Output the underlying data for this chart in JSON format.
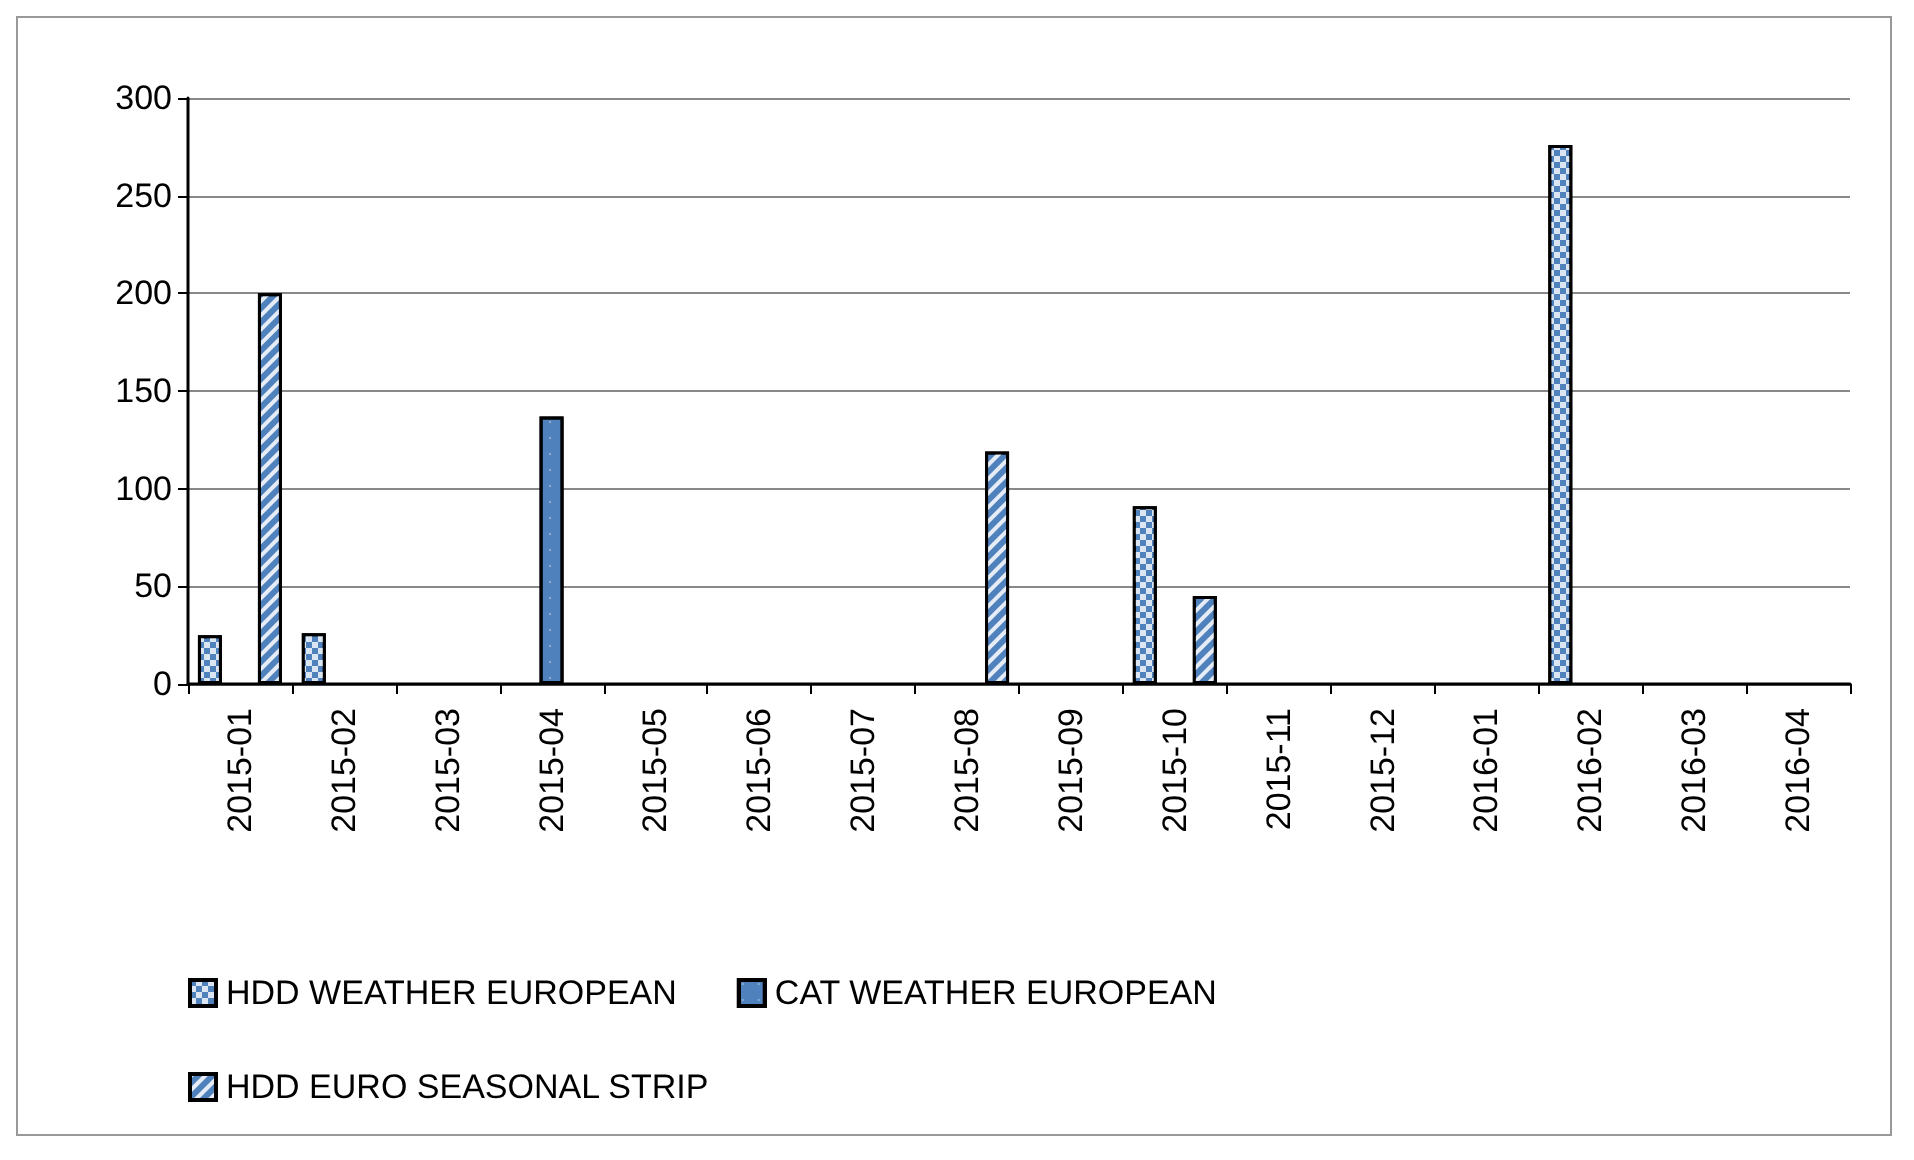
{
  "chart_data": {
    "type": "bar",
    "categories": [
      "2015-01",
      "2015-02",
      "2015-03",
      "2015-04",
      "2015-05",
      "2015-06",
      "2015-07",
      "2015-08",
      "2015-09",
      "2015-10",
      "2015-11",
      "2015-12",
      "2016-01",
      "2016-02",
      "2016-03",
      "2016-04"
    ],
    "series": [
      {
        "name": "HDD WEATHER EUROPEAN",
        "color": "#4f81bd",
        "values": [
          25,
          26,
          null,
          null,
          null,
          null,
          null,
          null,
          null,
          91,
          null,
          null,
          null,
          276,
          null,
          null
        ]
      },
      {
        "name": "CAT WEATHER EUROPEAN",
        "color": "#4f81bd",
        "values": [
          null,
          null,
          null,
          137,
          null,
          null,
          null,
          null,
          null,
          null,
          null,
          null,
          null,
          null,
          null,
          null
        ]
      },
      {
        "name": "HDD EURO SEASONAL STRIP",
        "color": "#4f81bd",
        "values": [
          200,
          null,
          null,
          null,
          null,
          null,
          null,
          119,
          null,
          45,
          null,
          null,
          null,
          null,
          null,
          null
        ]
      }
    ],
    "ylim": [
      0,
      300
    ],
    "yticks": [
      0,
      50,
      100,
      150,
      200,
      250,
      300
    ],
    "grid": "y",
    "legend": "bottom"
  }
}
